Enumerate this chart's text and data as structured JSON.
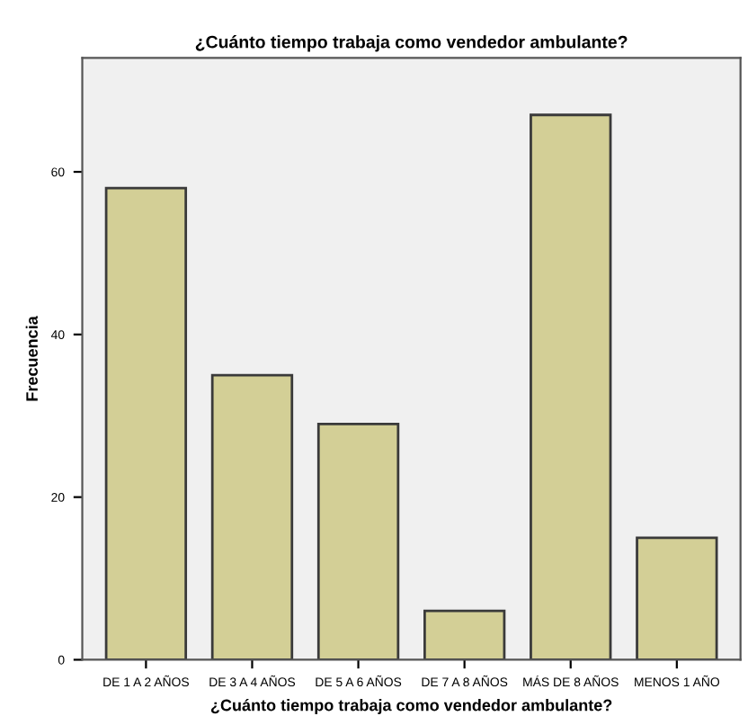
{
  "chart_data": {
    "type": "bar",
    "title": "¿Cuánto tiempo trabaja como vendedor ambulante?",
    "xlabel": "¿Cuánto tiempo trabaja como vendedor ambulante?",
    "ylabel": "Frecuencia",
    "categories": [
      "DE 1 A 2 AÑOS",
      "DE 3 A 4 AÑOS",
      "DE 5 A 6 AÑOS",
      "DE 7 A 8 AÑOS",
      "MÁS DE 8 AÑOS",
      "MENOS 1 AÑO"
    ],
    "values": [
      58,
      35,
      29,
      6,
      67,
      15
    ],
    "color": "#d3cf96",
    "ylim": [
      0,
      74
    ],
    "yticks": [
      0,
      20,
      40,
      60
    ],
    "grid": false
  }
}
